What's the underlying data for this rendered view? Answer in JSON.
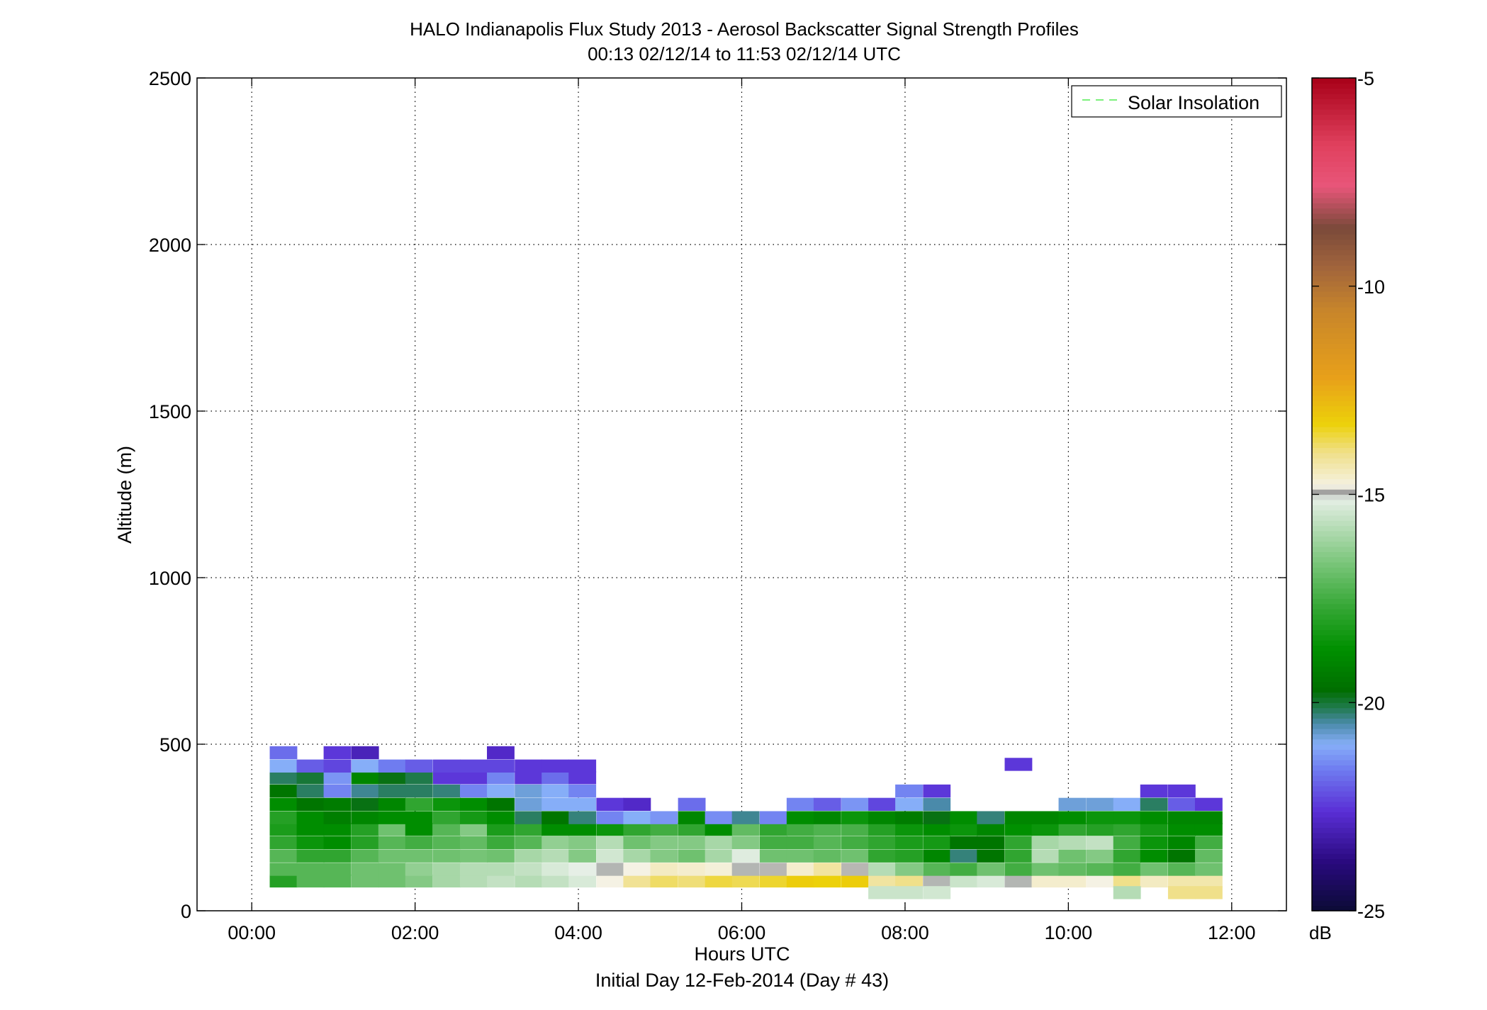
{
  "chart_data": {
    "type": "heatmap",
    "title": "HALO Indianapolis Flux Study 2013 - Aerosol Backscatter Signal Strength Profiles",
    "subtitle": "00:13 02/12/14 to 11:53 02/12/14  UTC",
    "xlabel": "Hours UTC",
    "xlabel2": "Initial Day 12-Feb-2014 (Day # 43)",
    "ylabel": "Altitude (m)",
    "xlim": [
      -0.67,
      12.67
    ],
    "ylim": [
      0,
      2500
    ],
    "x_ticks": [
      0,
      2,
      4,
      6,
      8,
      10,
      12
    ],
    "x_tick_labels": [
      "00:00",
      "02:00",
      "04:00",
      "06:00",
      "08:00",
      "10:00",
      "12:00"
    ],
    "y_ticks": [
      0,
      500,
      1000,
      1500,
      2000,
      2500
    ],
    "y_tick_labels": [
      "0",
      "500",
      "1000",
      "1500",
      "2000",
      "2500"
    ],
    "grid": true,
    "legend": {
      "position": "top-right",
      "entries": [
        "Solar Insolation"
      ],
      "line_color": "#7cf07c"
    },
    "colorbar": {
      "label": "dB",
      "range": [
        -25,
        -5
      ],
      "ticks": [
        -25,
        -20,
        -15,
        -10,
        -5
      ],
      "tick_labels": [
        "-25",
        "-20",
        "-15",
        "-10",
        "-5"
      ],
      "stops": [
        {
          "v": -25.0,
          "c": "#0b0b35"
        },
        {
          "v": -23.8,
          "c": "#2a0a80"
        },
        {
          "v": -22.6,
          "c": "#5a2fd6"
        },
        {
          "v": -21.6,
          "c": "#6f7cf0"
        },
        {
          "v": -21.0,
          "c": "#86aef8"
        },
        {
          "v": -20.5,
          "c": "#4a8aaa"
        },
        {
          "v": -20.1,
          "c": "#1f7a4a"
        },
        {
          "v": -19.7,
          "c": "#006e00"
        },
        {
          "v": -18.7,
          "c": "#009000"
        },
        {
          "v": -17.7,
          "c": "#35a735"
        },
        {
          "v": -16.7,
          "c": "#76c476"
        },
        {
          "v": -15.8,
          "c": "#b5dcb5"
        },
        {
          "v": -15.1,
          "c": "#e6efe6"
        },
        {
          "v": -14.95,
          "c": "#9a9a9a"
        },
        {
          "v": -14.8,
          "c": "#f5f2e4"
        },
        {
          "v": -14.0,
          "c": "#f0e08a"
        },
        {
          "v": -13.3,
          "c": "#ecd10a"
        },
        {
          "v": -12.2,
          "c": "#e8a01a"
        },
        {
          "v": -10.6,
          "c": "#c8862a"
        },
        {
          "v": -9.5,
          "c": "#a0633c"
        },
        {
          "v": -8.6,
          "c": "#7a4a3a"
        },
        {
          "v": -7.6,
          "c": "#e8567a"
        },
        {
          "v": -6.6,
          "c": "#e0405e"
        },
        {
          "v": -5.0,
          "c": "#a80018"
        }
      ]
    },
    "time_step_hours": 0.333,
    "altitude_bins": [
      90,
      125,
      165,
      205,
      245,
      280,
      320,
      360,
      400,
      435,
      475
    ],
    "bin_height_m": 38,
    "column_start_hours": [
      0.22,
      0.55,
      0.88,
      1.22,
      1.55,
      1.88,
      2.22,
      2.55,
      2.88,
      3.22,
      3.55,
      3.88,
      4.22,
      4.55,
      4.88,
      5.22,
      5.55,
      5.88,
      6.22,
      6.55,
      6.88,
      7.22,
      7.55,
      7.88,
      8.22,
      8.55,
      8.88,
      9.22,
      9.55,
      9.88,
      10.22,
      10.55,
      10.88,
      11.22,
      11.55
    ],
    "values_db": [
      [
        -18.0,
        -17.2,
        -17.2,
        -16.8,
        -16.8,
        -16.5,
        -16.0,
        -15.8,
        -15.6,
        -15.8,
        -15.6,
        -15.3,
        -14.8,
        -14.1,
        -13.8,
        -13.9,
        -13.6,
        -13.7,
        -13.5,
        -13.2,
        -13.3,
        -13.2,
        -14.2,
        -14.0,
        -15.0,
        -15.5,
        -15.3,
        -15.0,
        -14.6,
        -14.6,
        -14.8,
        -14.0,
        -14.5,
        -14.3,
        -14.3
      ],
      [
        -17.2,
        -17.2,
        -17.2,
        -16.8,
        -16.8,
        -16.3,
        -16.0,
        -15.8,
        -15.8,
        -15.6,
        -15.3,
        -15.1,
        -15.0,
        -14.8,
        -14.5,
        -14.6,
        -14.7,
        -15.0,
        -14.9,
        -14.6,
        -14.2,
        -14.9,
        -15.8,
        -16.5,
        -17.2,
        -17.5,
        -16.8,
        -17.5,
        -16.8,
        -17.0,
        -17.2,
        -17.5,
        -16.8,
        -17.2,
        -16.8
      ],
      [
        -17.2,
        -17.8,
        -17.8,
        -17.2,
        -16.8,
        -16.8,
        -16.8,
        -16.7,
        -16.8,
        -16.0,
        -15.8,
        -16.5,
        -15.4,
        -16.0,
        -16.5,
        -16.8,
        -16.0,
        -15.2,
        -16.8,
        -16.8,
        -17.0,
        -16.8,
        -17.8,
        -18.0,
        -19.0,
        -20.3,
        -19.5,
        -17.8,
        -15.8,
        -16.8,
        -16.5,
        -17.8,
        -18.8,
        -19.5,
        -17.0
      ],
      [
        -17.8,
        -18.5,
        -18.8,
        -18.0,
        -17.2,
        -17.5,
        -17.2,
        -17.0,
        -17.6,
        -17.2,
        -16.3,
        -16.5,
        -15.8,
        -16.8,
        -16.5,
        -16.5,
        -16.0,
        -16.5,
        -17.5,
        -17.5,
        -17.2,
        -17.5,
        -17.8,
        -18.2,
        -18.3,
        -19.5,
        -19.5,
        -17.8,
        -16.0,
        -15.8,
        -15.6,
        -17.5,
        -18.5,
        -19.0,
        -17.5
      ],
      [
        -18.2,
        -18.8,
        -18.8,
        -18.0,
        -16.8,
        -18.8,
        -17.2,
        -16.5,
        -18.2,
        -17.8,
        -18.8,
        -18.8,
        -18.5,
        -17.8,
        -17.5,
        -17.8,
        -18.8,
        -17.0,
        -17.8,
        -17.5,
        -17.3,
        -17.4,
        -18.0,
        -18.5,
        -18.8,
        -18.5,
        -19.0,
        -18.7,
        -18.5,
        -17.8,
        -18.0,
        -17.8,
        -18.3,
        -18.8,
        -18.8
      ],
      [
        -18.0,
        -18.8,
        -19.2,
        -19.0,
        -18.8,
        -18.8,
        -17.8,
        -18.3,
        -18.8,
        -20.2,
        -19.5,
        -20.3,
        -21.5,
        -21.0,
        -21.3,
        -19.0,
        -21.4,
        -20.4,
        -21.5,
        -18.8,
        -19.0,
        -18.5,
        -19.0,
        -19.3,
        -19.8,
        -18.8,
        -20.3,
        -19.0,
        -19.0,
        -18.8,
        -18.5,
        -18.5,
        -18.8,
        -19.0,
        -19.0
      ],
      [
        -18.8,
        -19.5,
        -19.3,
        -19.8,
        -19.0,
        -17.8,
        -18.5,
        -18.8,
        -19.5,
        -20.8,
        -21.0,
        -21.0,
        -22.5,
        -22.8,
        -99,
        -21.8,
        -99,
        -99,
        -99,
        -21.5,
        -22.0,
        -21.3,
        -22.3,
        -21.0,
        -20.5,
        -99,
        -99,
        -99,
        -99,
        -20.8,
        -20.8,
        -21.0,
        -20.2,
        -22.0,
        -22.5
      ],
      [
        -19.5,
        -20.2,
        -21.5,
        -20.4,
        -20.2,
        -20.2,
        -20.3,
        -21.5,
        -21.0,
        -20.8,
        -21.0,
        -21.5,
        -99,
        -99,
        -99,
        -99,
        -99,
        -99,
        -99,
        -99,
        -99,
        -99,
        -99,
        -21.5,
        -22.5,
        -99,
        -99,
        -99,
        -99,
        -99,
        -99,
        -99,
        -22.5,
        -22.5,
        -99
      ],
      [
        -20.2,
        -20.0,
        -21.3,
        -19.0,
        -19.8,
        -20.1,
        -22.5,
        -22.5,
        -21.5,
        -22.5,
        -21.8,
        -22.5,
        -99,
        -99,
        -99,
        -99,
        -99,
        -99,
        -99,
        -99,
        -99,
        -99,
        -99,
        -99,
        -99,
        -99,
        -99,
        -99,
        -99,
        -99,
        -99,
        -99,
        -99,
        -99,
        -99
      ],
      [
        -21.0,
        -22.0,
        -22.3,
        -21.0,
        -21.6,
        -22.0,
        -22.3,
        -22.3,
        -22.3,
        -22.5,
        -22.5,
        -22.5,
        -99,
        -99,
        -99,
        -99,
        -99,
        -99,
        -99,
        -99,
        -99,
        -99,
        -99,
        -99,
        -99,
        -99,
        -99,
        -99,
        -99,
        -99,
        -99,
        -99,
        -99,
        -99,
        -99
      ],
      [
        -21.8,
        -99,
        -22.5,
        -23.0,
        -99,
        -99,
        -99,
        -99,
        -22.8,
        -99,
        -99,
        -99,
        -99,
        -99,
        -99,
        -99,
        -99,
        -99,
        -99,
        -99,
        -99,
        -99,
        -99,
        -99,
        -99,
        -99,
        -99,
        -99,
        -99,
        -99,
        -99,
        -99,
        -99,
        -99,
        -99
      ]
    ],
    "extra_cells": [
      {
        "x": 7.55,
        "alt": 55,
        "db": -15.5
      },
      {
        "x": 7.88,
        "alt": 55,
        "db": -15.5
      },
      {
        "x": 8.22,
        "alt": 55,
        "db": -15.4
      },
      {
        "x": 10.55,
        "alt": 55,
        "db": -15.8
      },
      {
        "x": 11.22,
        "alt": 55,
        "db": -14.0
      },
      {
        "x": 11.55,
        "alt": 55,
        "db": -14.0
      },
      {
        "x": 9.22,
        "alt": 440,
        "db": -22.5
      }
    ]
  }
}
